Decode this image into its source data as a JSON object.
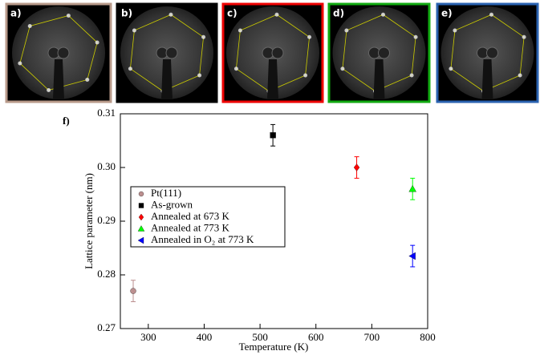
{
  "panel_labels": [
    "a)",
    "b)",
    "c)",
    "d)",
    "e)"
  ],
  "chart_data": {
    "type": "scatter",
    "panel_label": "f)",
    "x_label": "Temperature (K)",
    "y_label": "Lattice parameter (nm)",
    "xlim": [
      250,
      800
    ],
    "xticks": [
      300,
      400,
      500,
      600,
      700,
      800
    ],
    "ylim": [
      0.27,
      0.31
    ],
    "yticks": [
      0.27,
      0.28,
      0.29,
      {
        "value": 0.3,
        "label": "0.30"
      },
      0.31
    ],
    "legend": "center-left",
    "series": [
      {
        "name": "Pt(111)",
        "color": "#bc8f8f",
        "marker": "circle",
        "x": [
          273
        ],
        "values": [
          0.277
        ],
        "errors": [
          0.002
        ]
      },
      {
        "name": "As-grown",
        "color": "#000000",
        "marker": "square",
        "x": [
          523
        ],
        "values": [
          0.306
        ],
        "errors": [
          0.002
        ]
      },
      {
        "name": "Annealed at 673 K",
        "color": "#ff0000",
        "marker": "diamond",
        "x": [
          673
        ],
        "values": [
          0.3
        ],
        "errors": [
          0.002
        ]
      },
      {
        "name": "Annealed at 773 K",
        "color": "#00ff00",
        "marker": "triangle-up",
        "x": [
          773
        ],
        "values": [
          0.296
        ],
        "errors": [
          0.002
        ]
      },
      {
        "name": "Annealed in O₂ at 773 K",
        "color": "#0000ff",
        "marker": "triangle-left",
        "x": [
          773
        ],
        "values": [
          0.2835
        ],
        "errors": [
          0.002
        ]
      }
    ]
  }
}
